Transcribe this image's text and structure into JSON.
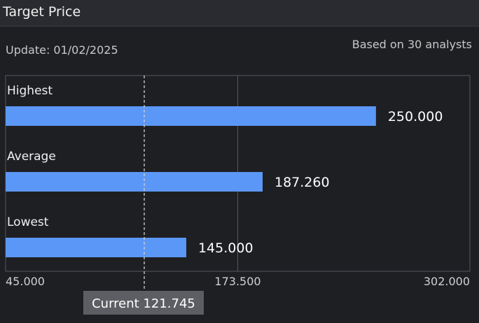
{
  "panel": {
    "title": "Target Price",
    "update_text": "Update: 01/02/2025",
    "based_on_text": "Based on 30 analysts"
  },
  "chart_data": {
    "type": "bar",
    "orientation": "horizontal",
    "categories": [
      "Highest",
      "Average",
      "Lowest"
    ],
    "values": [
      250.0,
      187.26,
      145.0
    ],
    "value_labels": [
      "250.000",
      "187.260",
      "145.000"
    ],
    "xlim": [
      45.0,
      302.0
    ],
    "x_ticks": [
      45.0,
      173.5,
      302.0
    ],
    "x_tick_labels": [
      "45.000",
      "173.500",
      "302.000"
    ],
    "current": {
      "value": 121.745,
      "label": "Current 121.745"
    },
    "grid": true,
    "colors": {
      "bar": "#5b97f6",
      "grid": "#55565c",
      "current_line": "#d0d0d0",
      "current_badge_bg": "#5d5e63"
    }
  }
}
